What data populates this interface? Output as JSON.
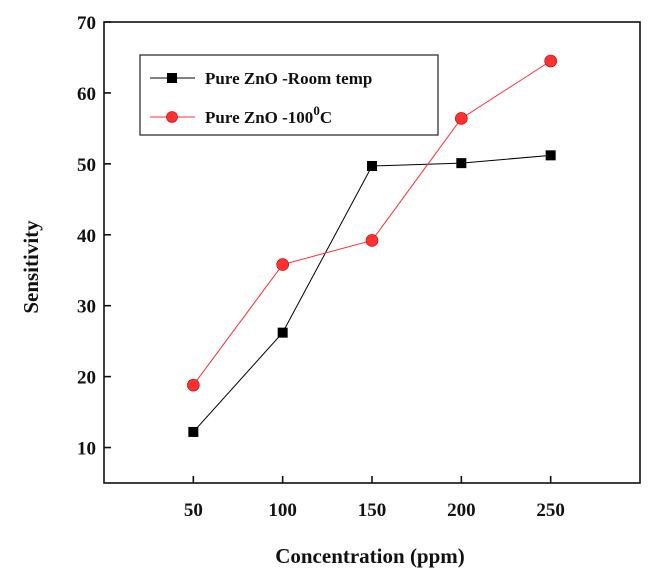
{
  "chart_data": {
    "type": "line",
    "title": "",
    "xlabel": "Concentration (ppm)",
    "ylabel": "Sensitivity",
    "x": [
      50,
      100,
      150,
      200,
      250
    ],
    "xlim": [
      0,
      300
    ],
    "ylim": [
      5,
      70
    ],
    "yticks": [
      10,
      20,
      30,
      40,
      50,
      60,
      70
    ],
    "grid": false,
    "legend_position": "top-left",
    "series": [
      {
        "name": "Pure ZnO -Room temp",
        "values": [
          12.2,
          26.2,
          49.7,
          50.1,
          51.2
        ],
        "color": "#000000",
        "marker": "square"
      },
      {
        "name_text": "Pure ZnO -100",
        "name_sup": "0",
        "name_suffix": "C",
        "values": [
          18.8,
          35.8,
          39.2,
          56.4,
          64.5
        ],
        "color": "#ff3030",
        "marker": "circle"
      }
    ]
  }
}
